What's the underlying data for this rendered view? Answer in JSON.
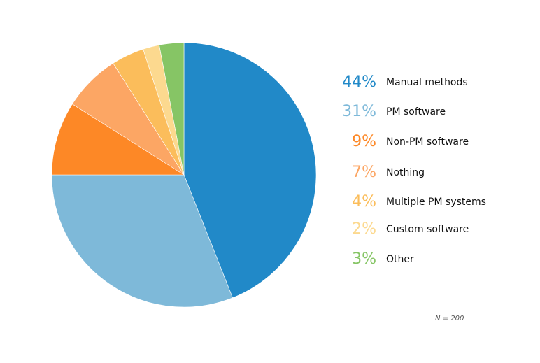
{
  "chart_data": {
    "type": "pie",
    "title": "",
    "note": "N = 200",
    "legend_position": "right",
    "slices": [
      {
        "label": "Manual methods",
        "value": 44,
        "pct_text": "44%",
        "color": "#2189c8"
      },
      {
        "label": "PM software",
        "value": 31,
        "pct_text": "31%",
        "color": "#7eb9d9"
      },
      {
        "label": "Non-PM software",
        "value": 9,
        "pct_text": "9%",
        "color": "#fd8826"
      },
      {
        "label": "Nothing",
        "value": 7,
        "pct_text": "7%",
        "color": "#fca664"
      },
      {
        "label": "Multiple PM systems",
        "value": 4,
        "pct_text": "4%",
        "color": "#fbbd5b"
      },
      {
        "label": "Custom software",
        "value": 2,
        "pct_text": "2%",
        "color": "#fcd98f"
      },
      {
        "label": "Other",
        "value": 3,
        "pct_text": "3%",
        "color": "#86c565"
      }
    ]
  }
}
